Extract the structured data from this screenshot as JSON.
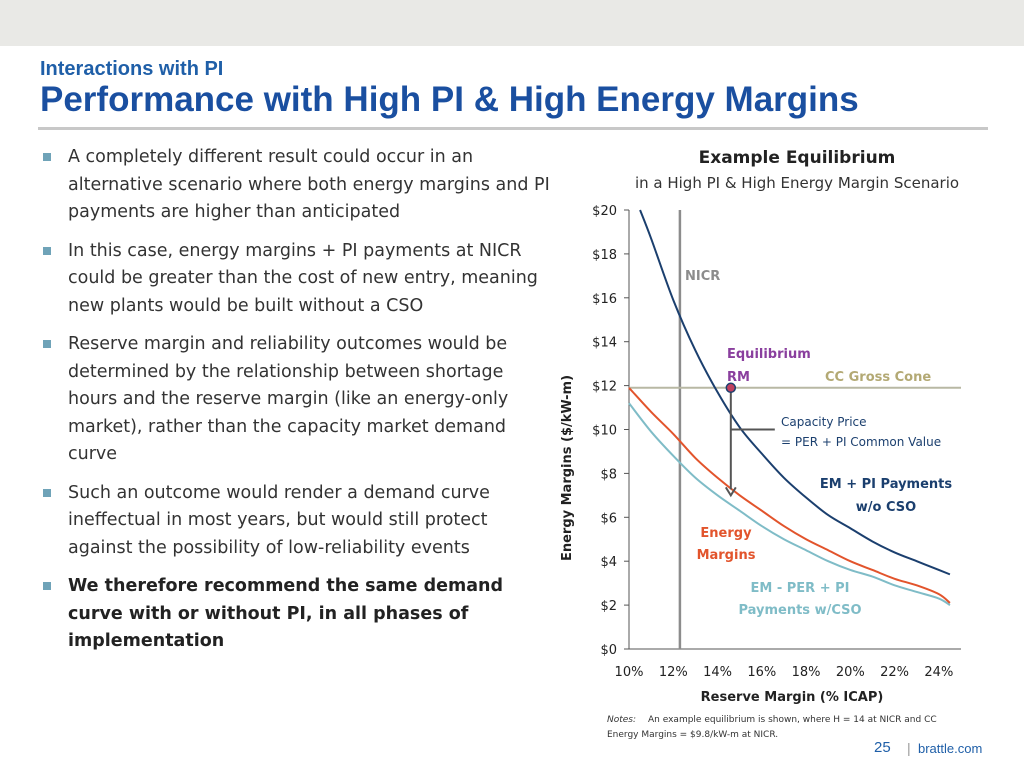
{
  "header": {
    "subtitle": "Interactions with PI",
    "title": "Performance with High PI & High Energy Margins"
  },
  "bullets": [
    {
      "text": "A completely different result could occur in an alternative scenario where both energy margins and PI payments are higher than anticipated",
      "bold": false
    },
    {
      "text": "In this case, energy margins + PI payments at NICR could be greater than the cost of new entry, meaning new plants would be built without a CSO",
      "bold": false
    },
    {
      "text": "Reserve margin and reliability outcomes would be determined by  the relationship between shortage hours and the reserve margin (like an energy-only market), rather than the capacity market demand curve",
      "bold": false
    },
    {
      "text": "Such an outcome would render a demand curve ineffectual in most years, but would still protect against the possibility of low-reliability events",
      "bold": false
    },
    {
      "text": "We therefore recommend the same demand curve with or without PI, in all phases of implementation",
      "bold": true
    }
  ],
  "chart_data": {
    "type": "line",
    "title": "Example Equilibrium",
    "subtitle": "in a High PI & High Energy Margin Scenario",
    "xlabel": "Reserve Margin (% ICAP)",
    "ylabel": "Energy Margins ($/kW-m)",
    "xlim": [
      10,
      25
    ],
    "ylim": [
      0,
      20
    ],
    "x_ticks": [
      "10%",
      "12%",
      "14%",
      "16%",
      "18%",
      "20%",
      "22%",
      "24%"
    ],
    "y_ticks": [
      "$0",
      "$2",
      "$4",
      "$6",
      "$8",
      "$10",
      "$12",
      "$14",
      "$16",
      "$18",
      "$20"
    ],
    "grid": false,
    "series": [
      {
        "name": "EM + PI Payments w/o CSO",
        "color": "#1b3f6e",
        "x": [
          10.5,
          11,
          12,
          13,
          14,
          15,
          16,
          17,
          18,
          19,
          20,
          21,
          22,
          23,
          24,
          24.5
        ],
        "y": [
          20.0,
          18.7,
          15.9,
          13.6,
          11.7,
          10.1,
          8.9,
          7.8,
          6.9,
          6.1,
          5.5,
          4.9,
          4.4,
          4.0,
          3.6,
          3.4
        ]
      },
      {
        "name": "Energy Margins",
        "color": "#e2542c",
        "x": [
          10,
          11,
          12,
          13,
          14,
          15,
          16,
          17,
          18,
          19,
          20,
          21,
          22,
          23,
          24,
          24.5
        ],
        "y": [
          11.9,
          10.8,
          9.8,
          8.7,
          7.8,
          7.0,
          6.3,
          5.6,
          5.0,
          4.5,
          4.0,
          3.6,
          3.2,
          2.9,
          2.5,
          2.1
        ]
      },
      {
        "name": "EM - PER + PI Payments w/CSO",
        "color": "#7fbcc7",
        "x": [
          10,
          11,
          12,
          13,
          14,
          15,
          16,
          17,
          18,
          19,
          20,
          21,
          22,
          23,
          24,
          24.5
        ],
        "y": [
          11.2,
          9.9,
          8.8,
          7.8,
          7.0,
          6.3,
          5.6,
          5.0,
          4.5,
          4.0,
          3.6,
          3.3,
          2.9,
          2.6,
          2.3,
          2.0
        ]
      }
    ],
    "nicr_x": 12.3,
    "cc_gross_cone": 11.9,
    "equilibrium": {
      "x": 14.6,
      "y": 11.9
    },
    "price_arrow": {
      "x": 14.6,
      "y_top": 11.9,
      "y_bottom": 7.0
    },
    "labels": {
      "nicr": "NICR",
      "equilibrium_line1": "Equilibrium",
      "equilibrium_line2": "RM",
      "cc_gross_cone": "CC Gross Cone",
      "capacity_price_line1": "Capacity Price",
      "capacity_price_line2": "= PER + PI Common Value",
      "em_pi_line1": "EM + PI Payments",
      "em_pi_line2": "w/o CSO",
      "energy_line1": "Energy",
      "energy_line2": "Margins",
      "em_per_line1": "EM - PER + PI",
      "em_per_line2": "Payments w/CSO"
    },
    "colors": {
      "nicr": "#8c8c8c",
      "cc_line": "#b8b8a4",
      "cc_label": "#b3a974",
      "equilibrium_label": "#8a3f9e",
      "equilibrium_dot": "#c04060",
      "axis": "#555555"
    },
    "notes_label": "Notes:",
    "notes_line1": "An example equilibrium is shown, where H = 14 at NICR and CC",
    "notes_line2": "Energy  Margins = $9.8/kW-m at NICR."
  },
  "footer": {
    "page": "25",
    "separator": "|",
    "site": "brattle.com"
  }
}
